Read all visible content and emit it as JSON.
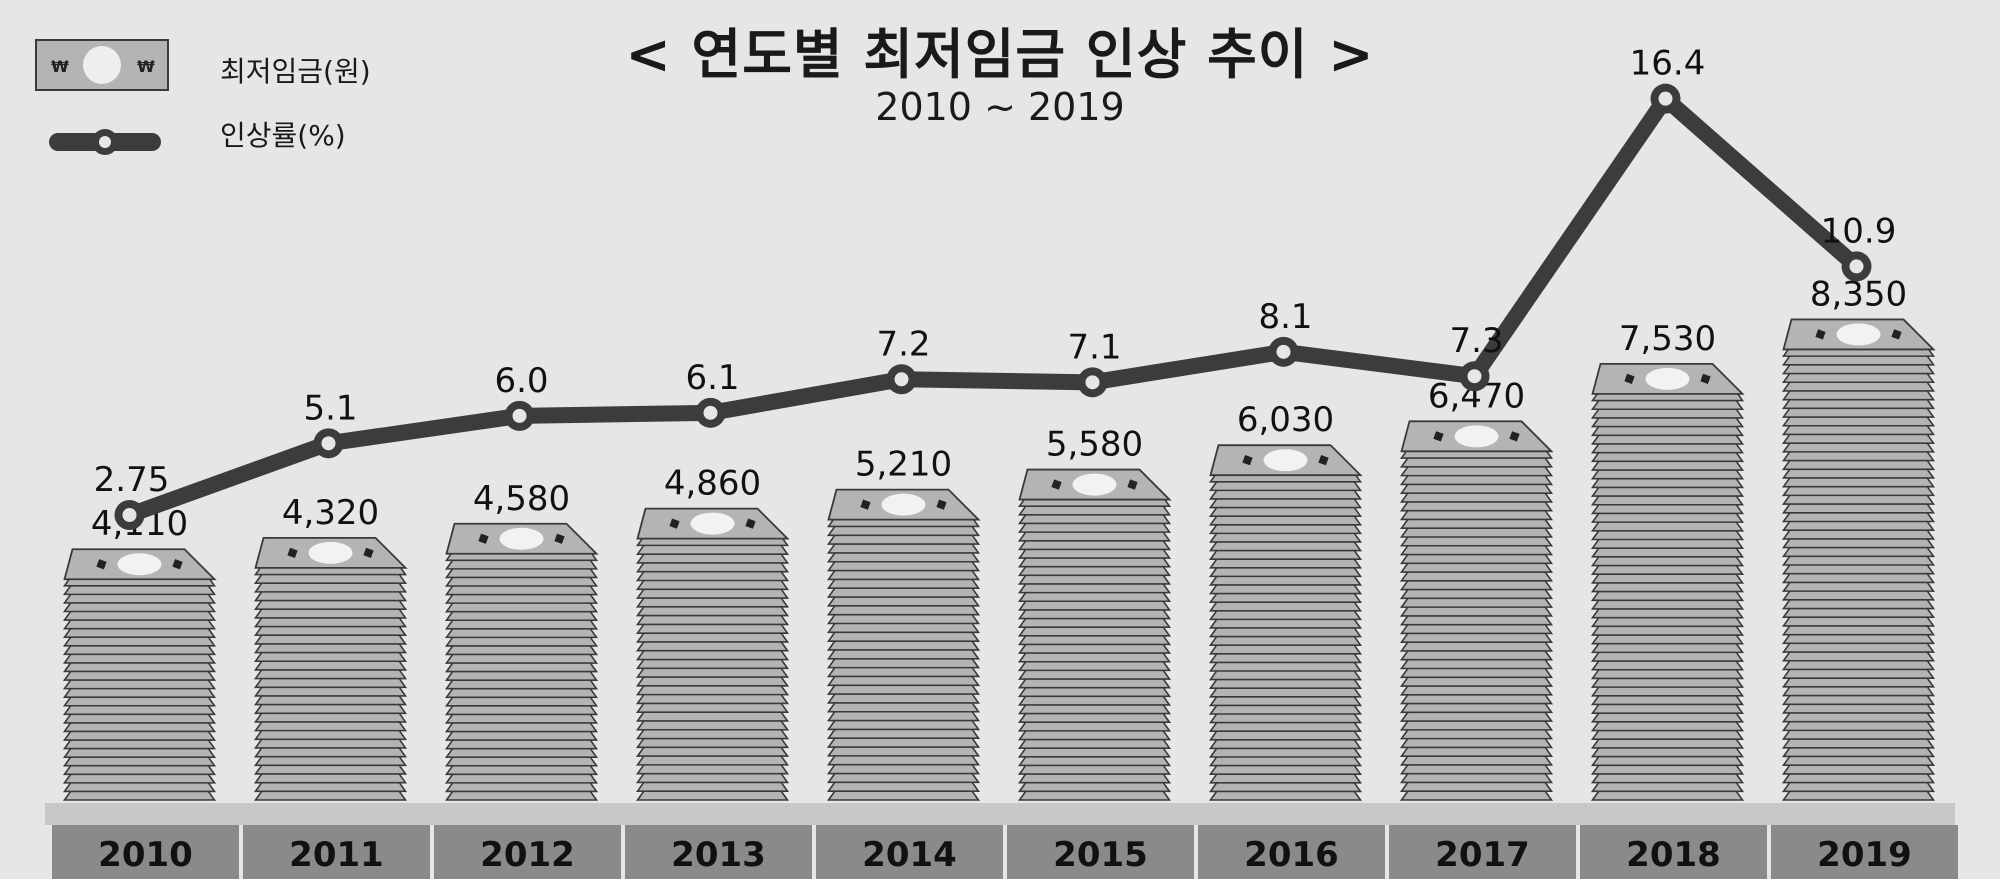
{
  "title": "< 연도별 최저임금 인상 추이 >",
  "subtitle": "2010 ~ 2019",
  "legend": {
    "wage_label": "최저임금(원)",
    "rate_label": "인상률(%)",
    "wage_icon": "banknote-icon",
    "rate_icon": "line-marker-icon"
  },
  "colors": {
    "background": "#e6e6e6",
    "bill_fill": "#b4b4b4",
    "bill_stroke": "#3a3a3a",
    "line": "#3c3c3c",
    "axis_band": "#8a8a8a",
    "axis_shelf": "#c8c8c8"
  },
  "chart_data": {
    "type": "bar",
    "categories": [
      "2010",
      "2011",
      "2012",
      "2013",
      "2014",
      "2015",
      "2016",
      "2017",
      "2018",
      "2019"
    ],
    "series": [
      {
        "name": "최저임금(원)",
        "type": "bar",
        "values": [
          4110,
          4320,
          4580,
          4860,
          5210,
          5580,
          6030,
          6470,
          7530,
          8350
        ],
        "labels": [
          "4,110",
          "4,320",
          "4,580",
          "4,860",
          "5,210",
          "5,580",
          "6,030",
          "6,470",
          "7,530",
          "8,350"
        ]
      },
      {
        "name": "인상률(%)",
        "type": "line",
        "values": [
          2.75,
          5.1,
          6.0,
          6.1,
          7.2,
          7.1,
          8.1,
          7.3,
          16.4,
          10.9
        ],
        "labels": [
          "2.75",
          "5.1",
          "6.0",
          "6.1",
          "7.2",
          "7.1",
          "8.1",
          "7.3",
          "16.4",
          "10.9"
        ]
      }
    ],
    "title": "< 연도별 최저임금 인상 추이 >",
    "subtitle": "2010 ~ 2019",
    "grid": false,
    "legend_position": "top-left"
  }
}
